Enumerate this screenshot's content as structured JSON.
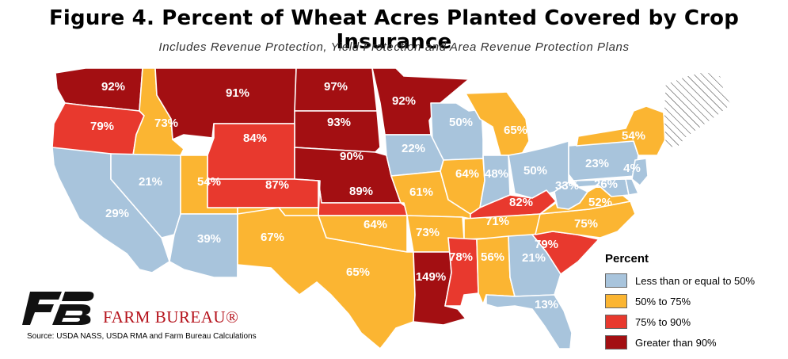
{
  "title": "Figure 4. Percent of Wheat Acres Planted Covered by Crop Insurance",
  "subtitle": "Includes Revenue Protection, Yield Protection and Area Revenue Protection Plans",
  "colors": {
    "low": "#a8c4dc",
    "mid": "#fbb532",
    "high": "#e8392e",
    "vhigh": "#a30f12",
    "nodata": "#ffffff"
  },
  "legend": {
    "title": "Percent",
    "items": [
      {
        "label": "Less than or equal to 50%",
        "category": "low"
      },
      {
        "label": "50% to 75%",
        "category": "mid"
      },
      {
        "label": "75% to 90%",
        "category": "high"
      },
      {
        "label": "Greater than 90%",
        "category": "vhigh"
      }
    ]
  },
  "states": [
    {
      "id": "WA",
      "value": "92%",
      "category": "vhigh"
    },
    {
      "id": "OR",
      "value": "79%",
      "category": "high"
    },
    {
      "id": "ID",
      "value": "73%",
      "category": "mid"
    },
    {
      "id": "MT",
      "value": "91%",
      "category": "vhigh"
    },
    {
      "id": "ND",
      "value": "97%",
      "category": "vhigh"
    },
    {
      "id": "MN",
      "value": "92%",
      "category": "vhigh"
    },
    {
      "id": "SD",
      "value": "93%",
      "category": "vhigh"
    },
    {
      "id": "WY",
      "value": "84%",
      "category": "high"
    },
    {
      "id": "NE",
      "value": "90%",
      "category": "vhigh"
    },
    {
      "id": "CA",
      "value": "29%",
      "category": "low"
    },
    {
      "id": "NV",
      "value": "21%",
      "category": "low"
    },
    {
      "id": "UT",
      "value": "54%",
      "category": "mid"
    },
    {
      "id": "CO",
      "value": "87%",
      "category": "high"
    },
    {
      "id": "KS",
      "value": "89%",
      "category": "high"
    },
    {
      "id": "AZ",
      "value": "39%",
      "category": "low"
    },
    {
      "id": "NM",
      "value": "67%",
      "category": "mid"
    },
    {
      "id": "OK",
      "value": "64%",
      "category": "mid"
    },
    {
      "id": "TX",
      "value": "65%",
      "category": "mid"
    },
    {
      "id": "WI",
      "value": "50%",
      "category": "low"
    },
    {
      "id": "IA",
      "value": "22%",
      "category": "low"
    },
    {
      "id": "MO",
      "value": "61%",
      "category": "mid"
    },
    {
      "id": "AR",
      "value": "73%",
      "category": "mid"
    },
    {
      "id": "LA",
      "value": "149%",
      "category": "vhigh"
    },
    {
      "id": "MI",
      "value": "65%",
      "category": "mid"
    },
    {
      "id": "IL",
      "value": "64%",
      "category": "mid"
    },
    {
      "id": "IN",
      "value": "48%",
      "category": "low"
    },
    {
      "id": "OH",
      "value": "50%",
      "category": "low"
    },
    {
      "id": "KY",
      "value": "82%",
      "category": "high"
    },
    {
      "id": "TN",
      "value": "71%",
      "category": "mid"
    },
    {
      "id": "MS",
      "value": "78%",
      "category": "high"
    },
    {
      "id": "AL",
      "value": "56%",
      "category": "mid"
    },
    {
      "id": "GA",
      "value": "21%",
      "category": "low"
    },
    {
      "id": "FL",
      "value": "13%",
      "category": "low"
    },
    {
      "id": "SC",
      "value": "79%",
      "category": "high"
    },
    {
      "id": "NC",
      "value": "75%",
      "category": "mid"
    },
    {
      "id": "VA",
      "value": "52%",
      "category": "mid"
    },
    {
      "id": "WV",
      "value": "33%",
      "category": "low"
    },
    {
      "id": "MD",
      "value": "26%",
      "category": "low"
    },
    {
      "id": "DE",
      "value": "",
      "category": "low"
    },
    {
      "id": "PA",
      "value": "23%",
      "category": "low"
    },
    {
      "id": "NJ",
      "value": "4%",
      "category": "low"
    },
    {
      "id": "NY",
      "value": "54%",
      "category": "mid"
    },
    {
      "id": "NE-REGION",
      "value": "",
      "category": "nodata"
    }
  ],
  "brand": {
    "logo_icon": "farm-bureau-logo-icon",
    "name": "FARM BUREAU®"
  },
  "source": "Source: USDA NASS, USDA RMA and Farm Bureau Calculations"
}
